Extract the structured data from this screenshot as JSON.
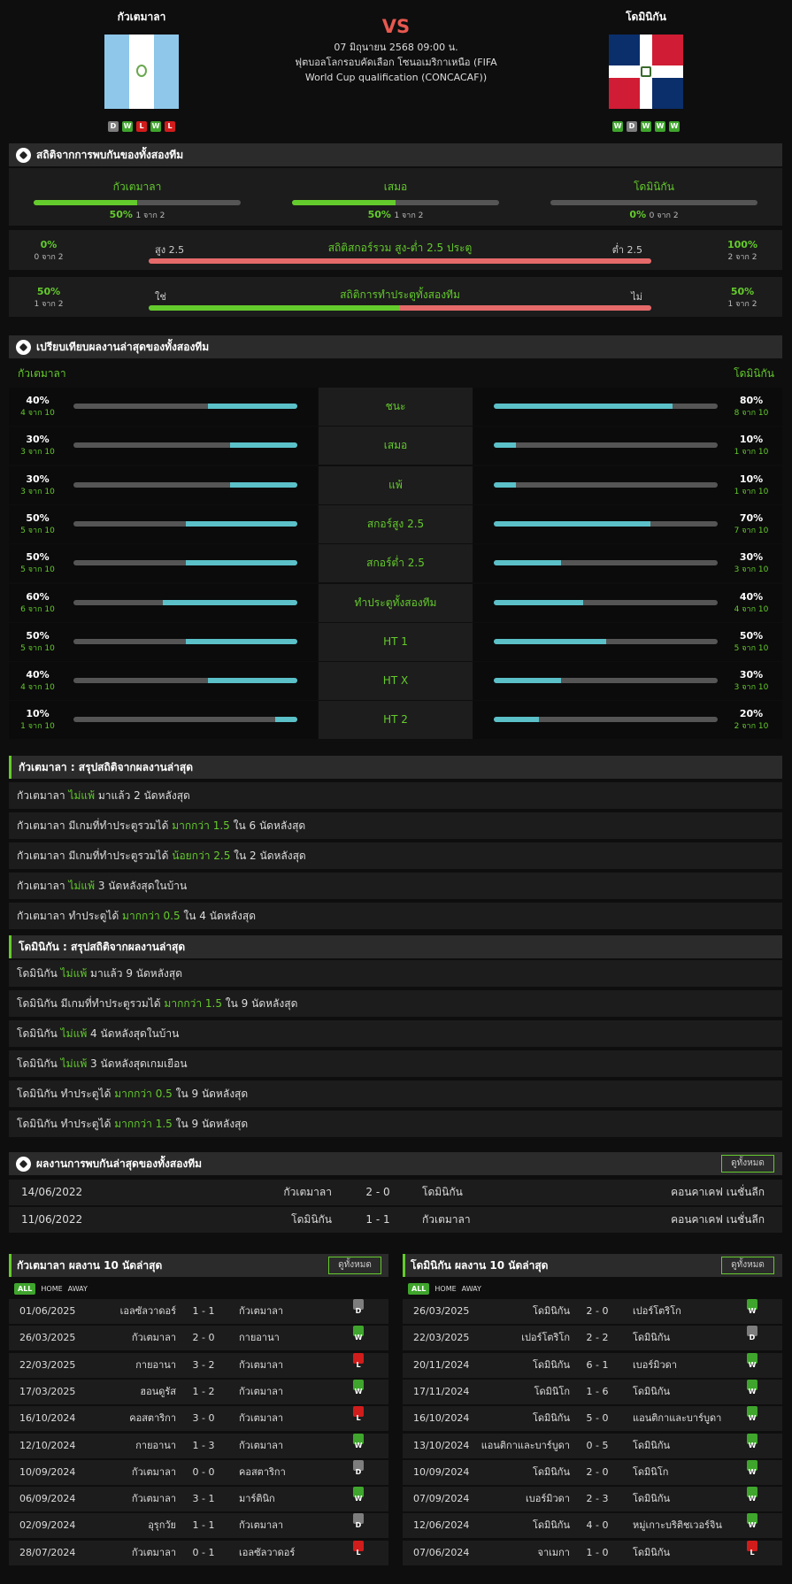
{
  "header": {
    "home_team": "กัวเตมาลา",
    "away_team": "โดมินิกัน",
    "vs": "VS",
    "datetime": "07 มิถุนายน 2568 09:00 น.",
    "competition": "ฟุตบอลโลกรอบคัดเลือก โซนอเมริกาเหนือ (FIFA World Cup qualification (CONCACAF))",
    "home_form": [
      "D",
      "W",
      "L",
      "W",
      "L"
    ],
    "away_form": [
      "W",
      "D",
      "W",
      "W",
      "W"
    ]
  },
  "h2h_stats": {
    "title": "สถิติจากการพบกันของทั้งสองทีม",
    "home": {
      "label": "กัวเตมาลา",
      "pct": "50%",
      "of": "1 จาก 2",
      "value": 50
    },
    "draw": {
      "label": "เสมอ",
      "pct": "50%",
      "of": "1 จาก 2",
      "value": 50
    },
    "away": {
      "label": "โดมินิกัน",
      "pct": "0%",
      "of": "0 จาก 2",
      "value": 0
    },
    "over_under": {
      "title": "สถิติสกอร์รวม สูง-ต่ำ 2.5 ประตู",
      "left_label": "สูง 2.5",
      "right_label": "ต่ำ 2.5",
      "left_pct": "0%",
      "left_of": "0 จาก 2",
      "right_pct": "100%",
      "right_of": "2 จาก 2",
      "value": 0
    },
    "btts": {
      "title": "สถิติการทำประตูทั้งสองทีม",
      "left_label": "ใช่",
      "right_label": "ไม่",
      "left_pct": "50%",
      "left_of": "1 จาก 2",
      "right_pct": "50%",
      "right_of": "1 จาก 2",
      "value": 50
    }
  },
  "compare": {
    "title": "เปรียบเทียบผลงานล่าสุดของทั้งสองทีม",
    "home_label": "กัวเตมาลา",
    "away_label": "โดมินิกัน",
    "rows": [
      {
        "label": "ชนะ",
        "home_pct": "40%",
        "home_of": "4 จาก 10",
        "home_val": 40,
        "away_pct": "80%",
        "away_of": "8 จาก 10",
        "away_val": 80
      },
      {
        "label": "เสมอ",
        "home_pct": "30%",
        "home_of": "3 จาก 10",
        "home_val": 30,
        "away_pct": "10%",
        "away_of": "1 จาก 10",
        "away_val": 10
      },
      {
        "label": "แพ้",
        "home_pct": "30%",
        "home_of": "3 จาก 10",
        "home_val": 30,
        "away_pct": "10%",
        "away_of": "1 จาก 10",
        "away_val": 10
      },
      {
        "label": "สกอร์สูง 2.5",
        "home_pct": "50%",
        "home_of": "5 จาก 10",
        "home_val": 50,
        "away_pct": "70%",
        "away_of": "7 จาก 10",
        "away_val": 70
      },
      {
        "label": "สกอร์ต่ำ 2.5",
        "home_pct": "50%",
        "home_of": "5 จาก 10",
        "home_val": 50,
        "away_pct": "30%",
        "away_of": "3 จาก 10",
        "away_val": 30
      },
      {
        "label": "ทำประตูทั้งสองทีม",
        "home_pct": "60%",
        "home_of": "6 จาก 10",
        "home_val": 60,
        "away_pct": "40%",
        "away_of": "4 จาก 10",
        "away_val": 40
      },
      {
        "label": "HT 1",
        "home_pct": "50%",
        "home_of": "5 จาก 10",
        "home_val": 50,
        "away_pct": "50%",
        "away_of": "5 จาก 10",
        "away_val": 50
      },
      {
        "label": "HT X",
        "home_pct": "40%",
        "home_of": "4 จาก 10",
        "home_val": 40,
        "away_pct": "30%",
        "away_of": "3 จาก 10",
        "away_val": 30
      },
      {
        "label": "HT 2",
        "home_pct": "10%",
        "home_of": "1 จาก 10",
        "home_val": 10,
        "away_pct": "20%",
        "away_of": "2 จาก 10",
        "away_val": 20
      }
    ]
  },
  "home_summary": {
    "title": "กัวเตมาลา : สรุปสถิติจากผลงานล่าสุด",
    "rows": [
      [
        {
          "t": "กัวเตมาลา "
        },
        {
          "t": "ไม่แพ้",
          "g": true
        },
        {
          "t": " มาแล้ว 2 นัดหลังสุด"
        }
      ],
      [
        {
          "t": "กัวเตมาลา มีเกมที่ทำประตูรวมได้ "
        },
        {
          "t": "มากกว่า 1.5",
          "g": true
        },
        {
          "t": " ใน 6 นัดหลังสุด"
        }
      ],
      [
        {
          "t": "กัวเตมาลา มีเกมที่ทำประตูรวมได้ "
        },
        {
          "t": "น้อยกว่า 2.5",
          "g": true
        },
        {
          "t": " ใน 2 นัดหลังสุด"
        }
      ],
      [
        {
          "t": "กัวเตมาลา "
        },
        {
          "t": "ไม่แพ้",
          "g": true
        },
        {
          "t": " 3 นัดหลังสุดในบ้าน"
        }
      ],
      [
        {
          "t": "กัวเตมาลา ทำประตูได้ "
        },
        {
          "t": "มากกว่า 0.5",
          "g": true
        },
        {
          "t": " ใน 4 นัดหลังสุด"
        }
      ]
    ]
  },
  "away_summary": {
    "title": "โดมินิกัน : สรุปสถิติจากผลงานล่าสุด",
    "rows": [
      [
        {
          "t": "โดมินิกัน "
        },
        {
          "t": "ไม่แพ้",
          "g": true
        },
        {
          "t": " มาแล้ว 9 นัดหลังสุด"
        }
      ],
      [
        {
          "t": "โดมินิกัน มีเกมที่ทำประตูรวมได้ "
        },
        {
          "t": "มากกว่า 1.5",
          "g": true
        },
        {
          "t": " ใน 9 นัดหลังสุด"
        }
      ],
      [
        {
          "t": "โดมินิกัน "
        },
        {
          "t": "ไม่แพ้",
          "g": true
        },
        {
          "t": " 4 นัดหลังสุดในบ้าน"
        }
      ],
      [
        {
          "t": "โดมินิกัน "
        },
        {
          "t": "ไม่แพ้",
          "g": true
        },
        {
          "t": " 3 นัดหลังสุดเกมเยือน"
        }
      ],
      [
        {
          "t": "โดมินิกัน ทำประตูได้ "
        },
        {
          "t": "มากกว่า 0.5",
          "g": true
        },
        {
          "t": " ใน 9 นัดหลังสุด"
        }
      ],
      [
        {
          "t": "โดมินิกัน ทำประตูได้ "
        },
        {
          "t": "มากกว่า 1.5",
          "g": true
        },
        {
          "t": " ใน 9 นัดหลังสุด"
        }
      ]
    ]
  },
  "h2h_results": {
    "title": "ผลงานการพบกันล่าสุดของทั้งสองทีม",
    "view_all": "ดูทั้งหมด",
    "rows": [
      {
        "date": "14/06/2022",
        "home": "กัวเตมาลา",
        "score": "2 - 0",
        "away": "โดมินิกัน",
        "comp": "คอนคาเคฟ เนชั่นลีก"
      },
      {
        "date": "11/06/2022",
        "home": "โดมินิกัน",
        "score": "1 - 1",
        "away": "กัวเตมาลา",
        "comp": "คอนคาเคฟ เนชั่นลีก"
      }
    ]
  },
  "home_recent": {
    "title": "กัวเตมาลา ผลงาน 10 นัดล่าสุด",
    "view_all": "ดูทั้งหมด",
    "tabs": [
      "ALL",
      "HOME",
      "AWAY"
    ],
    "rows": [
      {
        "date": "01/06/2025",
        "home": "เอลซัลวาดอร์",
        "score": "1 - 1",
        "away": "กัวเตมาลา",
        "r": "D"
      },
      {
        "date": "26/03/2025",
        "home": "กัวเตมาลา",
        "score": "2 - 0",
        "away": "กายอานา",
        "r": "W"
      },
      {
        "date": "22/03/2025",
        "home": "กายอานา",
        "score": "3 - 2",
        "away": "กัวเตมาลา",
        "r": "L"
      },
      {
        "date": "17/03/2025",
        "home": "ฮอนดูรัส",
        "score": "1 - 2",
        "away": "กัวเตมาลา",
        "r": "W"
      },
      {
        "date": "16/10/2024",
        "home": "คอสตาริกา",
        "score": "3 - 0",
        "away": "กัวเตมาลา",
        "r": "L"
      },
      {
        "date": "12/10/2024",
        "home": "กายอานา",
        "score": "1 - 3",
        "away": "กัวเตมาลา",
        "r": "W"
      },
      {
        "date": "10/09/2024",
        "home": "กัวเตมาลา",
        "score": "0 - 0",
        "away": "คอสตาริกา",
        "r": "D"
      },
      {
        "date": "06/09/2024",
        "home": "กัวเตมาลา",
        "score": "3 - 1",
        "away": "มาร์ตินิก",
        "r": "W"
      },
      {
        "date": "02/09/2024",
        "home": "อุรุกวัย",
        "score": "1 - 1",
        "away": "กัวเตมาลา",
        "r": "D"
      },
      {
        "date": "28/07/2024",
        "home": "กัวเตมาลา",
        "score": "0 - 1",
        "away": "เอลซัลวาดอร์",
        "r": "L"
      }
    ]
  },
  "away_recent": {
    "title": "โดมินิกัน ผลงาน 10 นัดล่าสุด",
    "view_all": "ดูทั้งหมด",
    "tabs": [
      "ALL",
      "HOME",
      "AWAY"
    ],
    "rows": [
      {
        "date": "26/03/2025",
        "home": "โดมินิกัน",
        "score": "2 - 0",
        "away": "เปอร์โตริโก",
        "r": "W"
      },
      {
        "date": "22/03/2025",
        "home": "เปอร์โตริโก",
        "score": "2 - 2",
        "away": "โดมินิกัน",
        "r": "D"
      },
      {
        "date": "20/11/2024",
        "home": "โดมินิกัน",
        "score": "6 - 1",
        "away": "เบอร์มิวดา",
        "r": "W"
      },
      {
        "date": "17/11/2024",
        "home": "โดมินิโก",
        "score": "1 - 6",
        "away": "โดมินิกัน",
        "r": "W"
      },
      {
        "date": "16/10/2024",
        "home": "โดมินิกัน",
        "score": "5 - 0",
        "away": "แอนติกาและบาร์บูดา",
        "r": "W"
      },
      {
        "date": "13/10/2024",
        "home": "แอนติกาและบาร์บูดา",
        "score": "0 - 5",
        "away": "โดมินิกัน",
        "r": "W"
      },
      {
        "date": "10/09/2024",
        "home": "โดมินิกัน",
        "score": "2 - 0",
        "away": "โดมินิโก",
        "r": "W"
      },
      {
        "date": "07/09/2024",
        "home": "เบอร์มิวดา",
        "score": "2 - 3",
        "away": "โดมินิกัน",
        "r": "W"
      },
      {
        "date": "12/06/2024",
        "home": "โดมินิกัน",
        "score": "4 - 0",
        "away": "หมู่เกาะบริติชเวอร์จิน",
        "r": "W"
      },
      {
        "date": "07/06/2024",
        "home": "จาเมกา",
        "score": "1 - 0",
        "away": "โดมินิกัน",
        "r": "L"
      }
    ]
  },
  "colors": {
    "accent": "#64cb2c",
    "compare_bar": "#5bc0c8",
    "ou_bar": "#e66a6a",
    "win": "#3fa52d",
    "draw": "#7d7d7d",
    "loss": "#d11c1c",
    "vs": "#e8584f"
  }
}
